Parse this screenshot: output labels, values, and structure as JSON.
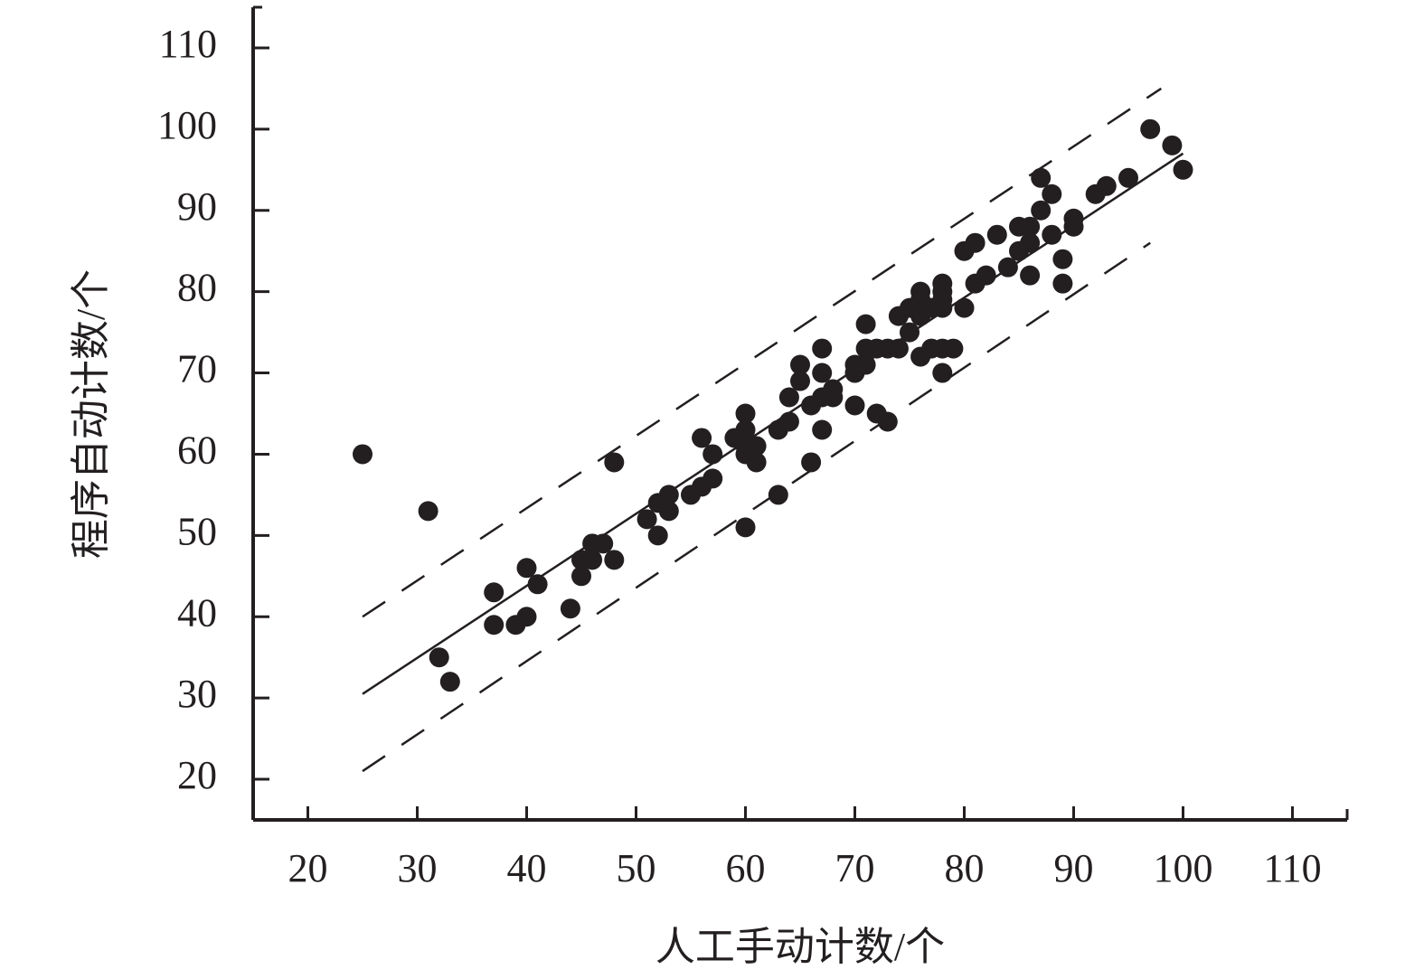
{
  "chart_data": {
    "type": "scatter",
    "x_label": "人工手动计数/个",
    "y_label": "程序自动计数/个",
    "xlim": [
      15,
      115
    ],
    "ylim": [
      15,
      115
    ],
    "xticks": [
      20,
      30,
      40,
      50,
      60,
      70,
      80,
      90,
      100,
      110
    ],
    "yticks": [
      20,
      30,
      40,
      50,
      60,
      70,
      80,
      90,
      100,
      110
    ],
    "color": "#231f20",
    "x": [
      25,
      31,
      32,
      33,
      37,
      37,
      39,
      40,
      40,
      41,
      44,
      45,
      45,
      46,
      46,
      47,
      48,
      48,
      51,
      52,
      52,
      53,
      53,
      55,
      56,
      56,
      57,
      57,
      59,
      60,
      60,
      60,
      60,
      60,
      61,
      61,
      63,
      63,
      64,
      64,
      65,
      65,
      66,
      66,
      67,
      67,
      67,
      67,
      68,
      68,
      70,
      70,
      70,
      71,
      71,
      71,
      72,
      72,
      73,
      73,
      74,
      74,
      75,
      75,
      76,
      76,
      76,
      76,
      77,
      77,
      78,
      78,
      78,
      78,
      78,
      78,
      79,
      80,
      80,
      81,
      81,
      82,
      83,
      84,
      85,
      85,
      86,
      86,
      86,
      87,
      87,
      88,
      88,
      89,
      89,
      90,
      90,
      92,
      93,
      95,
      97,
      99,
      100
    ],
    "y": [
      60,
      53,
      35,
      32,
      43,
      39,
      39,
      40,
      46,
      44,
      41,
      45,
      47,
      49,
      47,
      49,
      47,
      59,
      52,
      50,
      54,
      55,
      53,
      55,
      56,
      62,
      57,
      60,
      62,
      65,
      63,
      61,
      60,
      51,
      61,
      59,
      63,
      55,
      67,
      64,
      71,
      69,
      66,
      59,
      73,
      70,
      67,
      63,
      68,
      67,
      71,
      70,
      66,
      76,
      73,
      71,
      73,
      65,
      73,
      64,
      77,
      73,
      78,
      75,
      80,
      79,
      77,
      72,
      78,
      73,
      81,
      80,
      79,
      78,
      73,
      70,
      73,
      85,
      78,
      86,
      81,
      82,
      87,
      83,
      88,
      85,
      88,
      86,
      82,
      94,
      90,
      92,
      87,
      84,
      81,
      89,
      88,
      92,
      93,
      94,
      100,
      98,
      95
    ],
    "fit_line": {
      "x": [
        25,
        100
      ],
      "y": [
        30.5,
        97
      ]
    },
    "upper_bound": {
      "x": [
        25,
        98
      ],
      "y": [
        40,
        105
      ]
    },
    "lower_bound": {
      "x": [
        25,
        97
      ],
      "y": [
        21,
        86
      ]
    }
  }
}
